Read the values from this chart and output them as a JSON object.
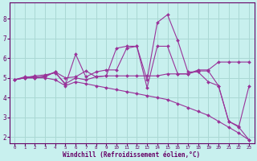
{
  "xlabel": "Windchill (Refroidissement éolien,°C)",
  "bg_color": "#c8f0ee",
  "line_color": "#993399",
  "grid_color": "#aad8d4",
  "xlim": [
    -0.5,
    23.5
  ],
  "ylim": [
    1.7,
    8.8
  ],
  "xticks": [
    0,
    1,
    2,
    3,
    4,
    5,
    6,
    7,
    8,
    9,
    10,
    11,
    12,
    13,
    14,
    15,
    16,
    17,
    18,
    19,
    20,
    21,
    22,
    23
  ],
  "yticks": [
    2,
    3,
    4,
    5,
    6,
    7,
    8
  ],
  "lines": [
    {
      "x": [
        0,
        1,
        2,
        3,
        4,
        5,
        6,
        7,
        8,
        9,
        10,
        11,
        12,
        13,
        14,
        15,
        16,
        17,
        18,
        19,
        20,
        21,
        22,
        23
      ],
      "y": [
        4.9,
        5.0,
        5.0,
        5.0,
        4.9,
        4.6,
        4.8,
        4.7,
        4.6,
        4.5,
        4.4,
        4.3,
        4.2,
        4.1,
        4.0,
        3.9,
        3.7,
        3.5,
        3.3,
        3.1,
        2.8,
        2.5,
        2.2,
        1.85
      ]
    },
    {
      "x": [
        0,
        1,
        2,
        3,
        4,
        5,
        6,
        7,
        8,
        9,
        10,
        11,
        12,
        13,
        14,
        15,
        16,
        17,
        18,
        19,
        20,
        21,
        22,
        23
      ],
      "y": [
        4.9,
        5.05,
        5.05,
        5.05,
        5.3,
        5.0,
        5.05,
        5.35,
        5.05,
        5.1,
        5.1,
        5.1,
        5.1,
        5.1,
        5.1,
        5.2,
        5.2,
        5.2,
        5.4,
        5.4,
        5.8,
        5.8,
        5.8,
        5.8
      ]
    },
    {
      "x": [
        0,
        1,
        2,
        3,
        4,
        5,
        6,
        7,
        8,
        9,
        10,
        11,
        12,
        13,
        14,
        15,
        16,
        17,
        18,
        19,
        20,
        21,
        22,
        23
      ],
      "y": [
        4.9,
        5.0,
        5.1,
        5.15,
        5.25,
        4.7,
        5.0,
        4.9,
        5.05,
        5.1,
        6.5,
        6.6,
        6.6,
        4.9,
        7.8,
        8.2,
        6.9,
        5.3,
        5.3,
        4.8,
        4.6,
        2.8,
        2.5,
        1.85
      ]
    },
    {
      "x": [
        0,
        1,
        2,
        3,
        4,
        5,
        6,
        7,
        8,
        9,
        10,
        11,
        12,
        13,
        14,
        15,
        16,
        17,
        18,
        19,
        20,
        21,
        22,
        23
      ],
      "y": [
        4.9,
        5.0,
        5.0,
        5.1,
        5.3,
        4.65,
        6.2,
        5.05,
        5.3,
        5.4,
        5.4,
        6.5,
        6.6,
        4.5,
        6.6,
        6.6,
        5.2,
        5.2,
        5.35,
        5.35,
        4.6,
        2.8,
        2.55,
        4.6
      ]
    }
  ]
}
